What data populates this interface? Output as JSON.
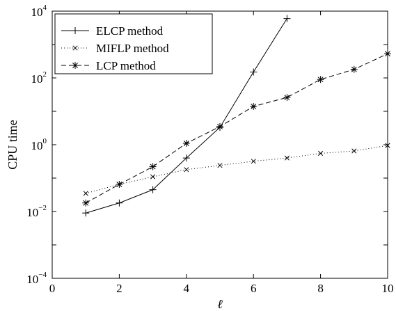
{
  "chart_data": {
    "type": "line",
    "xlabel": "ℓ",
    "ylabel": "CPU time",
    "xlim": [
      0,
      10
    ],
    "ylim": [
      0.0001,
      10000
    ],
    "yscale": "log",
    "xticks": [
      "0",
      "2",
      "4",
      "6",
      "8",
      "10"
    ],
    "yticks": [
      {
        "base": "10",
        "exp": "4",
        "value": 10000
      },
      {
        "base": "10",
        "exp": "2",
        "value": 100
      },
      {
        "base": "10",
        "exp": "0",
        "value": 1
      },
      {
        "base": "10",
        "exp": "−2",
        "value": 0.01
      },
      {
        "base": "10",
        "exp": "−4",
        "value": 0.0001
      }
    ],
    "grid": false,
    "legend_position": "top-left",
    "series": [
      {
        "name": "ELCP method",
        "style": "solid",
        "marker": "plus",
        "color": "#000000",
        "x": [
          1,
          2,
          3,
          4,
          5,
          6,
          7
        ],
        "y": [
          0.009,
          0.018,
          0.045,
          0.4,
          3.3,
          150,
          6000
        ]
      },
      {
        "name": "MIFLP method",
        "style": "dotted",
        "marker": "x",
        "color": "#000000",
        "x": [
          1,
          2,
          3,
          4,
          5,
          6,
          7,
          8,
          9,
          10
        ],
        "y": [
          0.035,
          0.065,
          0.11,
          0.18,
          0.24,
          0.32,
          0.4,
          0.55,
          0.65,
          0.95
        ]
      },
      {
        "name": "LCP method",
        "style": "dashed",
        "marker": "star",
        "color": "#000000",
        "x": [
          1,
          2,
          3,
          4,
          5,
          6,
          7,
          8,
          9,
          10
        ],
        "y": [
          0.018,
          0.065,
          0.22,
          1.1,
          3.5,
          14,
          26,
          90,
          180,
          530
        ]
      }
    ]
  }
}
